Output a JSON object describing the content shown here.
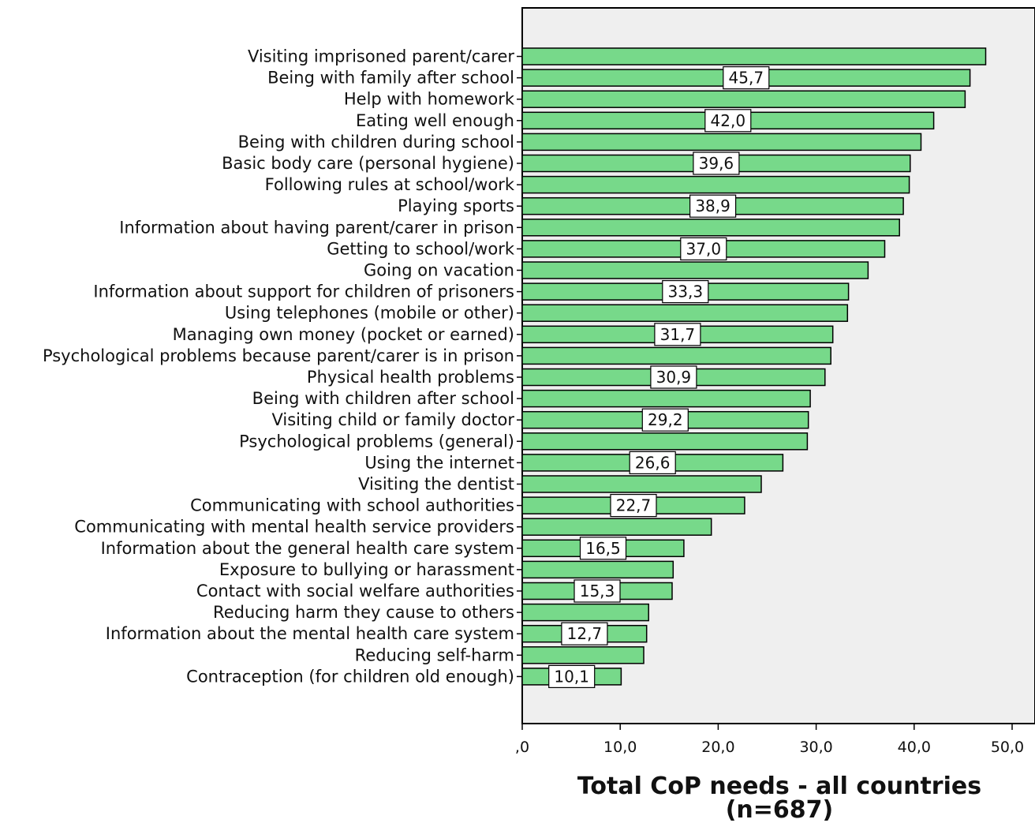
{
  "chart_data": {
    "type": "bar",
    "orientation": "horizontal",
    "categories": [
      "Visiting imprisoned parent/carer",
      "Being with family after school",
      "Help with homework",
      "Eating well enough",
      "Being with children during school",
      "Basic body care (personal hygiene)",
      "Following rules at school/work",
      "Playing sports",
      "Information about having parent/carer in prison",
      "Getting to school/work",
      "Going on vacation",
      "Information about support for children of prisoners",
      "Using telephones (mobile or other)",
      "Managing own money (pocket or earned)",
      "Psychological problems because parent/carer is in prison",
      "Physical health problems",
      "Being with children after school",
      "Visiting child or family doctor",
      "Psychological problems (general)",
      "Using the internet",
      "Visiting the dentist",
      "Communicating with school authorities",
      "Communicating with mental health service providers",
      "Information about the general health care system",
      "Exposure to bullying or harassment",
      "Contact with social welfare authorities",
      "Reducing harm they cause to others",
      "Information about the mental health care system",
      "Reducing self-harm",
      "Contraception (for children old enough)"
    ],
    "values": [
      47.3,
      45.7,
      45.2,
      42.0,
      40.7,
      39.6,
      39.5,
      38.9,
      38.5,
      37.0,
      35.3,
      33.3,
      33.2,
      31.7,
      31.5,
      30.9,
      29.4,
      29.2,
      29.1,
      26.6,
      24.4,
      22.7,
      19.3,
      16.5,
      15.4,
      15.3,
      12.9,
      12.7,
      12.4,
      10.1
    ],
    "data_labels": [
      "",
      "45,7",
      "",
      "42,0",
      "",
      "39,6",
      "",
      "38,9",
      "",
      "37,0",
      "",
      "33,3",
      "",
      "31,7",
      "",
      "30,9",
      "",
      "29,2",
      "",
      "26,6",
      "",
      "22,7",
      "",
      "16,5",
      "",
      "15,3",
      "",
      "12,7",
      "",
      "10,1"
    ],
    "xlim": [
      0,
      50
    ],
    "xticks": [
      0,
      10,
      20,
      30,
      40,
      50
    ],
    "xtick_labels": [
      ",0",
      "10,0",
      "20,0",
      "30,0",
      "40,0",
      "50,0"
    ],
    "xlabel": "Total CoP needs - all countries",
    "xlabel_line2": "(n=687)",
    "ylabel": "",
    "title": "",
    "grid": false,
    "legend": "none",
    "bar_color": "#77d98a",
    "plot_background": "#efefef",
    "bar_edge_color": "#000000"
  }
}
